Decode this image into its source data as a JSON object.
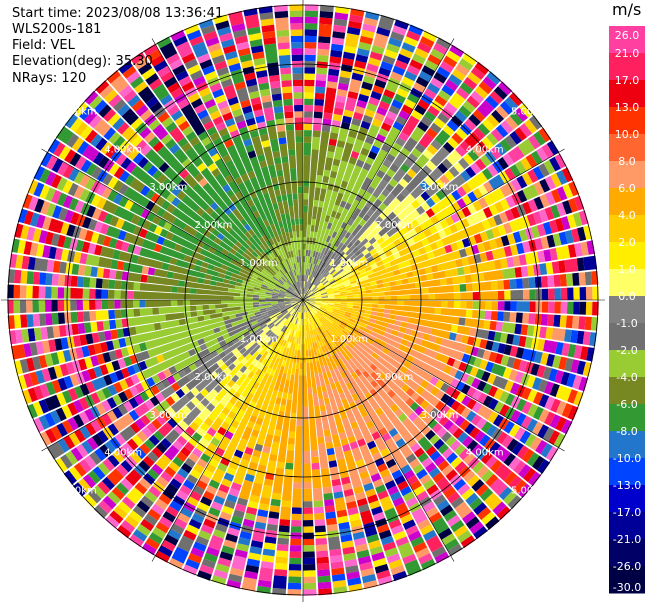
{
  "header": {
    "start_time": "Start time: 2023/08/08 13:36:41",
    "instrument": "WLS200s-181",
    "field": "Field: VEL",
    "elevation": "Elevation(deg): 35.30",
    "nrays": "NRays: 120"
  },
  "colorbar": {
    "unit": "m/s",
    "ticks": [
      "26.0",
      "21.0",
      "17.0",
      "13.0",
      "10.0",
      "8.0",
      "6.0",
      "4.0",
      "2.0",
      "1.0",
      "0.0",
      "-1.0",
      "-2.0",
      "-4.0",
      "-6.0",
      "-8.0",
      "-10.0",
      "-13.0",
      "-17.0",
      "-21.0",
      "-26.0",
      "-30.0"
    ],
    "colors": [
      "#ff40a0",
      "#ff2060",
      "#ee0010",
      "#ff3300",
      "#ff6630",
      "#ff9966",
      "#ffaa00",
      "#ffcc00",
      "#ffee00",
      "#ffff66",
      "#808080",
      "#707070",
      "#99cc33",
      "#778822",
      "#339933",
      "#2277cc",
      "#0044ff",
      "#0000cc",
      "#000099",
      "#000066",
      "#000044"
    ]
  },
  "chart_data": {
    "type": "ppi",
    "field": "VEL",
    "units": "m/s",
    "elevation_deg": 35.3,
    "n_rays": 120,
    "range_ring_labels": [
      "1.00km",
      "2.00km",
      "3.00km",
      "4.00km",
      "5.00km"
    ],
    "range_rings_km": [
      1,
      2,
      3,
      4,
      5
    ]
  }
}
